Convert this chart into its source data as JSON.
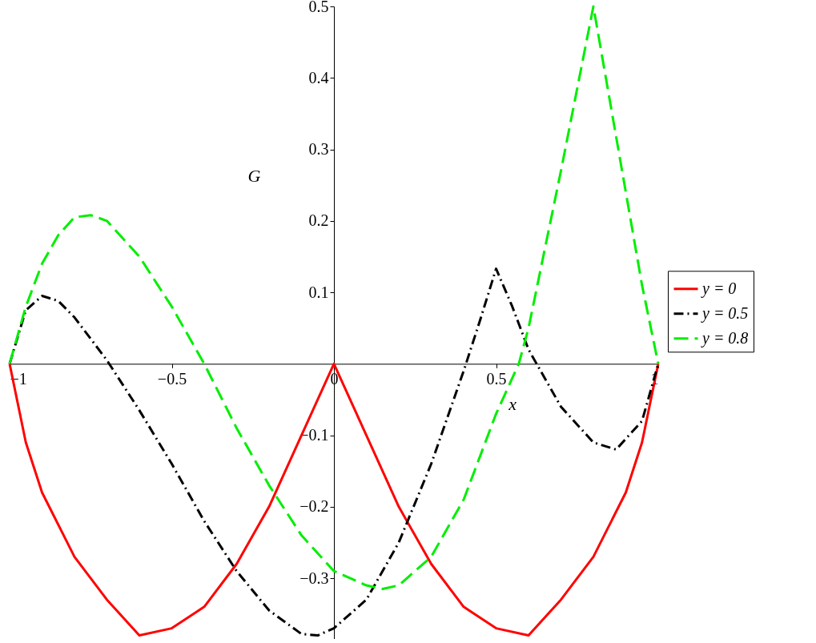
{
  "chart_data": {
    "type": "line",
    "xlabel": "x",
    "ylabel": "G",
    "xlim": [
      -1,
      1
    ],
    "ylim": [
      -0.385,
      0.5
    ],
    "xticks": [
      -1,
      -0.5,
      0,
      0.5,
      1
    ],
    "yticks": [
      -0.3,
      -0.2,
      -0.1,
      0.1,
      0.2,
      0.3,
      0.4,
      0.5
    ],
    "grid": false,
    "legend": "right",
    "series": [
      {
        "name": "y = 0",
        "color": "#ff0000",
        "line_style": "solid",
        "x": [
          -1,
          -0.95,
          -0.9,
          -0.8,
          -0.7,
          -0.6,
          -0.5,
          -0.4,
          -0.3,
          -0.2,
          -0.1,
          0,
          0.1,
          0.2,
          0.3,
          0.4,
          0.5,
          0.6,
          0.7,
          0.8,
          0.9,
          0.95,
          1
        ],
        "values": [
          0,
          -0.11,
          -0.18,
          -0.27,
          -0.33,
          -0.38,
          -0.37,
          -0.34,
          -0.28,
          -0.2,
          -0.1,
          0,
          -0.1,
          -0.2,
          -0.28,
          -0.34,
          -0.37,
          -0.38,
          -0.33,
          -0.27,
          -0.18,
          -0.11,
          0
        ]
      },
      {
        "name": "y = 0.5",
        "color": "#000000",
        "line_style": "dashdot",
        "x": [
          -1,
          -0.95,
          -0.9,
          -0.85,
          -0.8,
          -0.7,
          -0.6,
          -0.5,
          -0.4,
          -0.3,
          -0.2,
          -0.1,
          -0.05,
          0,
          0.1,
          0.2,
          0.3,
          0.4,
          0.45,
          0.5,
          0.55,
          0.6,
          0.7,
          0.8,
          0.87,
          0.95,
          1
        ],
        "values": [
          0,
          0.075,
          0.095,
          0.088,
          0.065,
          0.005,
          -0.065,
          -0.14,
          -0.22,
          -0.29,
          -0.345,
          -0.378,
          -0.38,
          -0.37,
          -0.33,
          -0.25,
          -0.14,
          -0.01,
          0.06,
          0.133,
          0.08,
          0.02,
          -0.06,
          -0.11,
          -0.12,
          -0.08,
          0
        ]
      },
      {
        "name": "y = 0.8",
        "color": "#00ee00",
        "line_style": "dashed",
        "x": [
          -1,
          -0.95,
          -0.9,
          -0.85,
          -0.8,
          -0.75,
          -0.7,
          -0.6,
          -0.5,
          -0.4,
          -0.3,
          -0.2,
          -0.1,
          0,
          0.1,
          0.15,
          0.2,
          0.3,
          0.4,
          0.5,
          0.57,
          0.6,
          0.7,
          0.8,
          0.85,
          0.9,
          0.95,
          1
        ],
        "values": [
          0,
          0.08,
          0.14,
          0.18,
          0.205,
          0.208,
          0.2,
          0.15,
          0.08,
          0,
          -0.09,
          -0.17,
          -0.24,
          -0.29,
          -0.31,
          -0.315,
          -0.31,
          -0.27,
          -0.19,
          -0.07,
          0,
          0.05,
          0.27,
          0.5,
          0.37,
          0.24,
          0.11,
          0
        ]
      }
    ]
  }
}
